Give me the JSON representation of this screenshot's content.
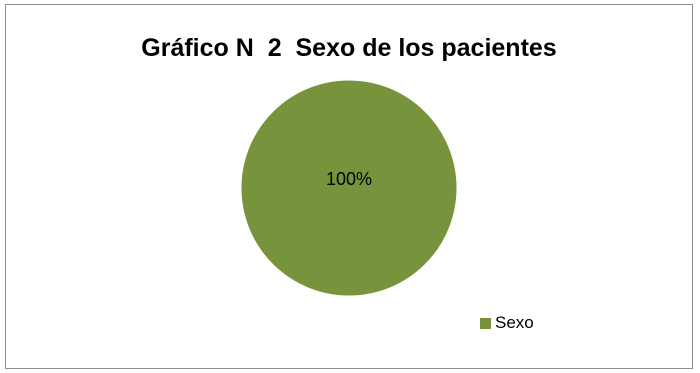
{
  "chart_data": {
    "type": "pie",
    "title": "Gráfico N  2  Sexo de los pacientes",
    "categories": [
      "Sexo"
    ],
    "values": [
      100
    ],
    "data_labels": [
      "100%"
    ],
    "legend": {
      "placement": "bottom-right",
      "entries": [
        "Sexo"
      ]
    },
    "colors": {
      "slice": "#77933c",
      "frame_border": "#8c8c8c",
      "background": "#ffffff"
    }
  }
}
